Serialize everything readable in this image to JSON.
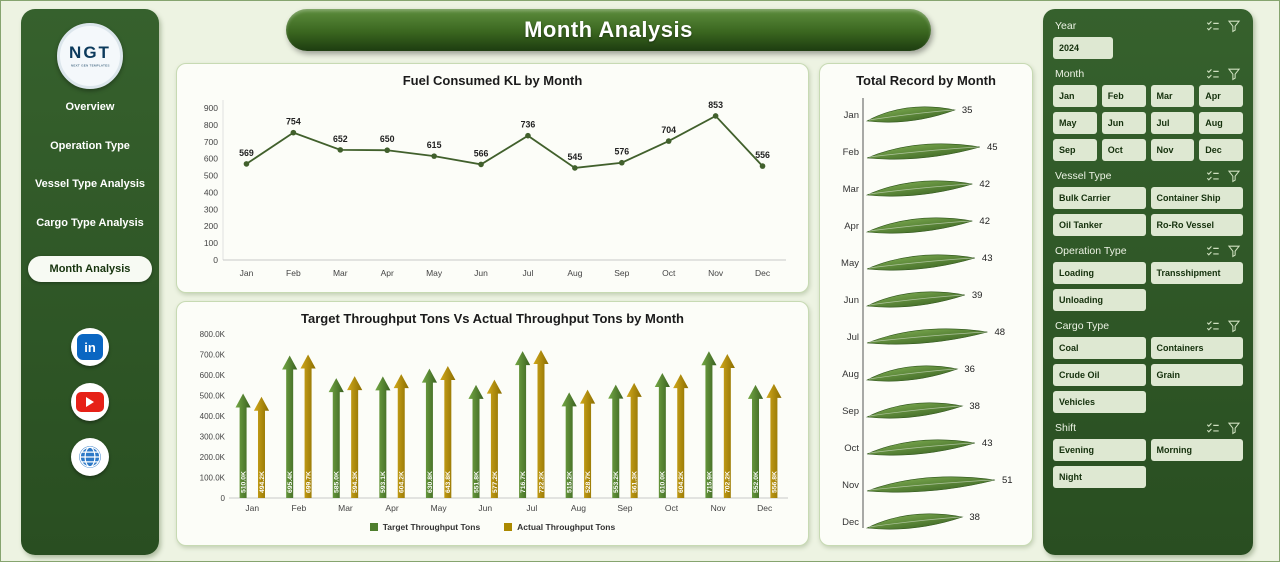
{
  "app": {
    "title": "Month Analysis"
  },
  "colors": {
    "accent_green": "#4e7e2d",
    "accent_gold": "#ab8900",
    "panel_green": "#2f5626"
  },
  "sidebar": {
    "logo_text": "NGT",
    "logo_subtext": "NEXT GEN TEMPLATES",
    "items": [
      {
        "label": "Overview",
        "active": false
      },
      {
        "label": "Operation Type",
        "active": false
      },
      {
        "label": "Vessel Type Analysis",
        "active": false
      },
      {
        "label": "Cargo Type Analysis",
        "active": false
      },
      {
        "label": "Month Analysis",
        "active": true
      }
    ],
    "social_icons": [
      "linkedin-icon",
      "youtube-icon",
      "globe-icon"
    ]
  },
  "filters": [
    {
      "id": "year",
      "label": "Year",
      "columns": 3,
      "options": [
        "2024"
      ]
    },
    {
      "id": "month",
      "label": "Month",
      "columns": 4,
      "options": [
        "Jan",
        "Feb",
        "Mar",
        "Apr",
        "May",
        "Jun",
        "Jul",
        "Aug",
        "Sep",
        "Oct",
        "Nov",
        "Dec"
      ]
    },
    {
      "id": "vessel-type",
      "label": "Vessel Type",
      "columns": 2,
      "options": [
        "Bulk Carrier",
        "Container Ship",
        "Oil Tanker",
        "Ro-Ro Vessel"
      ]
    },
    {
      "id": "operation-type",
      "label": "Operation Type",
      "columns": 2,
      "options": [
        "Loading",
        "Transshipment",
        "Unloading"
      ]
    },
    {
      "id": "cargo-type",
      "label": "Cargo Type",
      "columns": 2,
      "options": [
        "Coal",
        "Containers",
        "Crude Oil",
        "Grain",
        "Vehicles"
      ]
    },
    {
      "id": "shift",
      "label": "Shift",
      "columns": 2,
      "options": [
        "Evening",
        "Morning",
        "Night"
      ]
    }
  ],
  "chart_data": [
    {
      "id": "fuel",
      "type": "line",
      "title": "Fuel Consumed KL by Month",
      "categories": [
        "Jan",
        "Feb",
        "Mar",
        "Apr",
        "May",
        "Jun",
        "Jul",
        "Aug",
        "Sep",
        "Oct",
        "Nov",
        "Dec"
      ],
      "values": [
        569,
        754,
        652,
        650,
        615,
        566,
        736,
        545,
        576,
        704,
        853,
        556
      ],
      "ylim": [
        0,
        900
      ],
      "ytick_step": 100,
      "line_color": "#41602c",
      "grid": false,
      "data_labels": true
    },
    {
      "id": "throughput",
      "type": "bar",
      "title": "Target Throughput Tons Vs Actual Throughput Tons by Month",
      "categories": [
        "Jan",
        "Feb",
        "Mar",
        "Apr",
        "May",
        "Jun",
        "Jul",
        "Aug",
        "Sep",
        "Oct",
        "Nov",
        "Dec"
      ],
      "value_unit": "K",
      "ylim": [
        0,
        800
      ],
      "ytick_step": 100,
      "legend_position": "bottom",
      "series": [
        {
          "name": "Target Throughput Tons",
          "color": "#4e7e2d",
          "values": [
            510.0,
            695.4,
            585.0,
            593.1,
            630.8,
            551.8,
            716.7,
            515.2,
            553.2,
            610.0,
            715.9,
            552.0
          ]
        },
        {
          "name": "Actual Throughput Tons",
          "color": "#ab8900",
          "values": [
            494.2,
            699.7,
            594.3,
            604.2,
            643.8,
            577.2,
            722.2,
            528.7,
            561.3,
            604.2,
            702.2,
            556.8
          ]
        }
      ]
    },
    {
      "id": "records",
      "type": "bar",
      "orientation": "horizontal",
      "title": "Total Record by Month",
      "categories": [
        "Jan",
        "Feb",
        "Mar",
        "Apr",
        "May",
        "Jun",
        "Jul",
        "Aug",
        "Sep",
        "Oct",
        "Nov",
        "Dec"
      ],
      "values": [
        35,
        45,
        42,
        42,
        43,
        39,
        48,
        36,
        38,
        43,
        51,
        38
      ],
      "xlim": [
        0,
        51
      ],
      "data_labels": true
    }
  ]
}
